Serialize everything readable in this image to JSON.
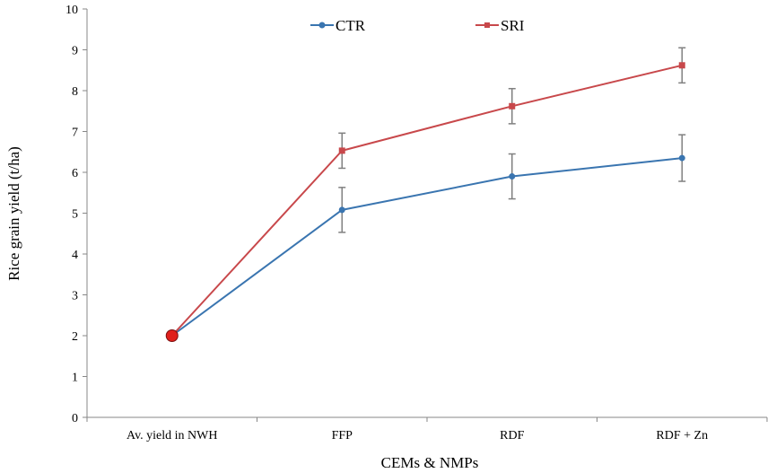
{
  "chart_data": {
    "type": "line",
    "title": "",
    "xlabel": "CEMs & NMPs",
    "ylabel": "Rice grain yield  (t/ha)",
    "categories": [
      "Av. yield in NWH",
      "FFP",
      "RDF",
      "RDF + Zn"
    ],
    "ylim": [
      0,
      10
    ],
    "yticks": [
      0,
      1,
      2,
      3,
      4,
      5,
      6,
      7,
      8,
      9,
      10
    ],
    "legend_position": "top",
    "series": [
      {
        "name": "CTR",
        "color": "#3a75b0",
        "marker": "circle",
        "values": [
          2.0,
          5.08,
          5.9,
          6.35
        ],
        "error": [
          0,
          0.55,
          0.55,
          0.57
        ]
      },
      {
        "name": "SRI",
        "color": "#c8484b",
        "marker": "square",
        "values": [
          2.0,
          6.53,
          7.62,
          8.62
        ],
        "error": [
          0,
          0.43,
          0.43,
          0.43
        ]
      }
    ],
    "first_point_color": "#e0201c",
    "errorbar_color": "#808080",
    "axis_color": "#878787"
  }
}
